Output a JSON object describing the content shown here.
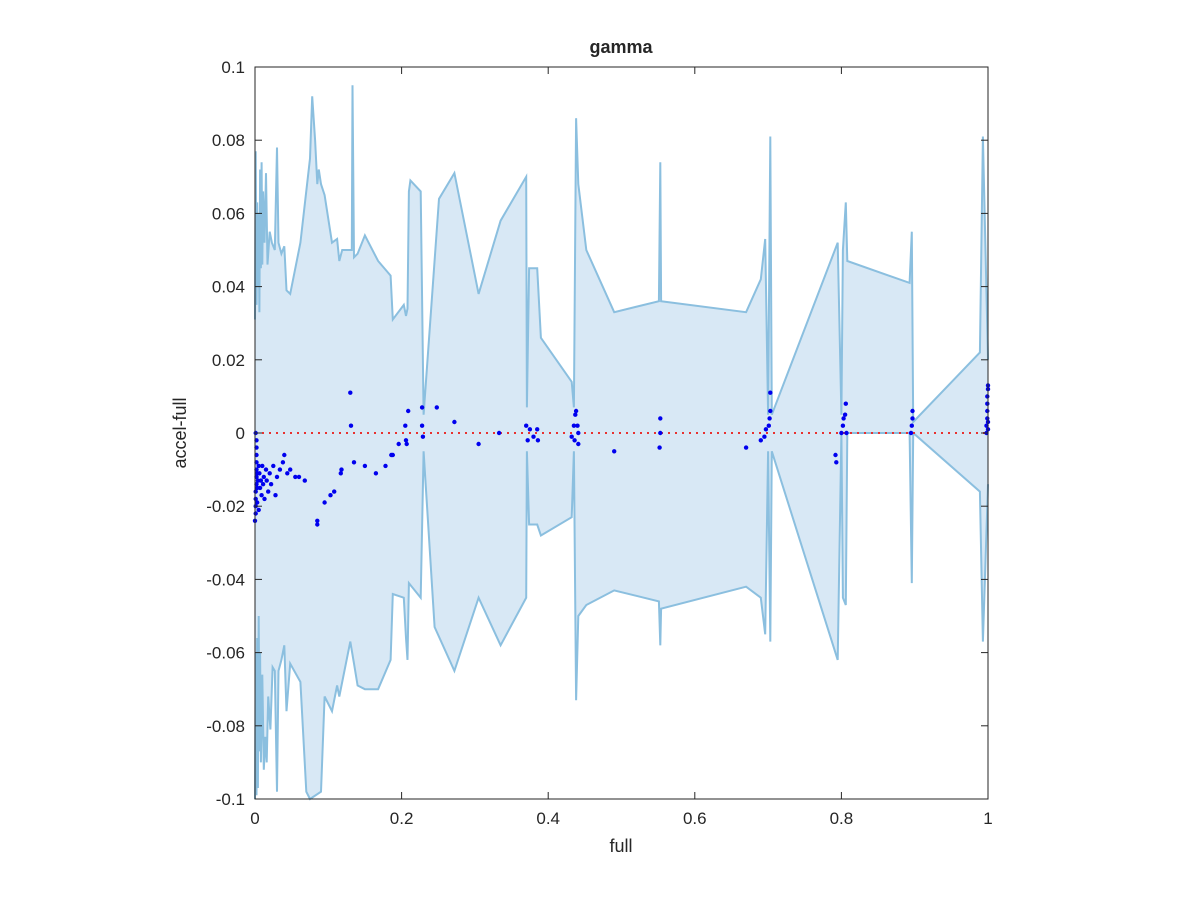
{
  "chart_data": {
    "type": "scatter",
    "title": "gamma",
    "xlabel": "full",
    "ylabel": "accel-full",
    "xlim": [
      0,
      1
    ],
    "ylim": [
      -0.1,
      0.1
    ],
    "xticks": [
      0,
      0.2,
      0.4,
      0.6,
      0.8,
      1
    ],
    "xtick_labels": [
      "0",
      "0.2",
      "0.4",
      "0.6",
      "0.8",
      "1"
    ],
    "yticks": [
      -0.1,
      -0.08,
      -0.06,
      -0.04,
      -0.02,
      0,
      0.02,
      0.04,
      0.06,
      0.08,
      0.1
    ],
    "ytick_labels": [
      "-0.1",
      "-0.08",
      "-0.06",
      "-0.04",
      "-0.02",
      "0",
      "0.02",
      "0.04",
      "0.06",
      "0.08",
      "0.1"
    ],
    "grid": false,
    "box": true,
    "colors": {
      "band_fill": "#d8e8f5",
      "band_edge": "#8bbfdf",
      "points": "#0000ee",
      "zero_line": "#e8312f",
      "axes": "#262626"
    },
    "zero_line": {
      "y": 0,
      "style": "dotted"
    },
    "band_upper": [
      [
        0.0,
        0.031
      ],
      [
        0.001,
        0.077
      ],
      [
        0.002,
        0.035
      ],
      [
        0.003,
        0.063
      ],
      [
        0.004,
        0.04
      ],
      [
        0.005,
        0.06
      ],
      [
        0.006,
        0.033
      ],
      [
        0.007,
        0.072
      ],
      [
        0.008,
        0.045
      ],
      [
        0.009,
        0.074
      ],
      [
        0.01,
        0.046
      ],
      [
        0.011,
        0.066
      ],
      [
        0.013,
        0.052
      ],
      [
        0.015,
        0.071
      ],
      [
        0.017,
        0.046
      ],
      [
        0.02,
        0.055
      ],
      [
        0.023,
        0.052
      ],
      [
        0.027,
        0.05
      ],
      [
        0.03,
        0.078
      ],
      [
        0.032,
        0.052
      ],
      [
        0.036,
        0.049
      ],
      [
        0.04,
        0.051
      ],
      [
        0.043,
        0.039
      ],
      [
        0.048,
        0.038
      ],
      [
        0.062,
        0.052
      ],
      [
        0.075,
        0.075
      ],
      [
        0.078,
        0.092
      ],
      [
        0.082,
        0.08
      ],
      [
        0.085,
        0.068
      ],
      [
        0.087,
        0.072
      ],
      [
        0.09,
        0.068
      ],
      [
        0.095,
        0.065
      ],
      [
        0.105,
        0.052
      ],
      [
        0.112,
        0.053
      ],
      [
        0.115,
        0.047
      ],
      [
        0.119,
        0.05
      ],
      [
        0.132,
        0.05
      ],
      [
        0.133,
        0.095
      ],
      [
        0.135,
        0.048
      ],
      [
        0.14,
        0.049
      ],
      [
        0.15,
        0.054
      ],
      [
        0.168,
        0.047
      ],
      [
        0.185,
        0.043
      ],
      [
        0.188,
        0.031
      ],
      [
        0.203,
        0.035
      ],
      [
        0.206,
        0.032
      ],
      [
        0.208,
        0.034
      ],
      [
        0.21,
        0.066
      ],
      [
        0.212,
        0.069
      ],
      [
        0.226,
        0.066
      ],
      [
        0.23,
        0.005
      ],
      [
        0.251,
        0.064
      ],
      [
        0.272,
        0.071
      ],
      [
        0.305,
        0.038
      ],
      [
        0.335,
        0.058
      ],
      [
        0.37,
        0.07
      ],
      [
        0.371,
        0.007
      ],
      [
        0.374,
        0.045
      ],
      [
        0.385,
        0.045
      ],
      [
        0.39,
        0.026
      ],
      [
        0.432,
        0.014
      ],
      [
        0.435,
        0.007
      ],
      [
        0.438,
        0.086
      ],
      [
        0.441,
        0.068
      ],
      [
        0.452,
        0.05
      ],
      [
        0.49,
        0.033
      ],
      [
        0.551,
        0.036
      ],
      [
        0.553,
        0.074
      ],
      [
        0.554,
        0.036
      ],
      [
        0.67,
        0.033
      ],
      [
        0.69,
        0.042
      ],
      [
        0.696,
        0.053
      ],
      [
        0.7,
        0.005
      ],
      [
        0.703,
        0.081
      ],
      [
        0.705,
        0.005
      ],
      [
        0.795,
        0.052
      ],
      [
        0.8,
        0.005
      ],
      [
        0.802,
        0.05
      ],
      [
        0.806,
        0.063
      ],
      [
        0.808,
        0.047
      ],
      [
        0.893,
        0.041
      ],
      [
        0.896,
        0.055
      ],
      [
        0.898,
        0.003
      ],
      [
        0.989,
        0.022
      ],
      [
        0.993,
        0.081
      ],
      [
        1.0,
        0.02
      ]
    ],
    "band_lower": [
      [
        0.0,
        -0.1
      ],
      [
        0.001,
        -0.06
      ],
      [
        0.002,
        -0.099
      ],
      [
        0.003,
        -0.056
      ],
      [
        0.004,
        -0.097
      ],
      [
        0.005,
        -0.05
      ],
      [
        0.006,
        -0.087
      ],
      [
        0.007,
        -0.06
      ],
      [
        0.008,
        -0.09
      ],
      [
        0.01,
        -0.066
      ],
      [
        0.012,
        -0.092
      ],
      [
        0.014,
        -0.083
      ],
      [
        0.016,
        -0.09
      ],
      [
        0.018,
        -0.072
      ],
      [
        0.021,
        -0.081
      ],
      [
        0.024,
        -0.064
      ],
      [
        0.027,
        -0.065
      ],
      [
        0.03,
        -0.098
      ],
      [
        0.032,
        -0.065
      ],
      [
        0.036,
        -0.062
      ],
      [
        0.04,
        -0.058
      ],
      [
        0.043,
        -0.076
      ],
      [
        0.048,
        -0.063
      ],
      [
        0.062,
        -0.068
      ],
      [
        0.07,
        -0.098
      ],
      [
        0.075,
        -0.1
      ],
      [
        0.09,
        -0.098
      ],
      [
        0.095,
        -0.072
      ],
      [
        0.105,
        -0.076
      ],
      [
        0.112,
        -0.069
      ],
      [
        0.115,
        -0.072
      ],
      [
        0.13,
        -0.057
      ],
      [
        0.135,
        -0.063
      ],
      [
        0.14,
        -0.069
      ],
      [
        0.15,
        -0.07
      ],
      [
        0.168,
        -0.07
      ],
      [
        0.185,
        -0.062
      ],
      [
        0.188,
        -0.044
      ],
      [
        0.203,
        -0.045
      ],
      [
        0.206,
        -0.056
      ],
      [
        0.208,
        -0.062
      ],
      [
        0.21,
        -0.041
      ],
      [
        0.226,
        -0.045
      ],
      [
        0.23,
        -0.005
      ],
      [
        0.245,
        -0.053
      ],
      [
        0.272,
        -0.065
      ],
      [
        0.305,
        -0.045
      ],
      [
        0.335,
        -0.058
      ],
      [
        0.37,
        -0.045
      ],
      [
        0.371,
        -0.005
      ],
      [
        0.374,
        -0.025
      ],
      [
        0.385,
        -0.025
      ],
      [
        0.39,
        -0.028
      ],
      [
        0.432,
        -0.023
      ],
      [
        0.435,
        -0.005
      ],
      [
        0.438,
        -0.073
      ],
      [
        0.441,
        -0.05
      ],
      [
        0.452,
        -0.047
      ],
      [
        0.49,
        -0.043
      ],
      [
        0.551,
        -0.046
      ],
      [
        0.553,
        -0.058
      ],
      [
        0.554,
        -0.048
      ],
      [
        0.67,
        -0.042
      ],
      [
        0.69,
        -0.045
      ],
      [
        0.696,
        -0.055
      ],
      [
        0.7,
        -0.005
      ],
      [
        0.703,
        -0.057
      ],
      [
        0.705,
        -0.005
      ],
      [
        0.795,
        -0.062
      ],
      [
        0.8,
        0.0
      ],
      [
        0.802,
        -0.045
      ],
      [
        0.806,
        -0.047
      ],
      [
        0.808,
        0.0
      ],
      [
        0.893,
        0.0
      ],
      [
        0.896,
        -0.041
      ],
      [
        0.898,
        0.0
      ],
      [
        0.989,
        -0.016
      ],
      [
        0.993,
        -0.057
      ],
      [
        1.0,
        -0.014
      ]
    ],
    "points": [
      [
        0.0,
        -0.024
      ],
      [
        0.001,
        -0.022
      ],
      [
        0.001,
        -0.02
      ],
      [
        0.001,
        -0.018
      ],
      [
        0.001,
        -0.016
      ],
      [
        0.002,
        -0.014
      ],
      [
        0.002,
        -0.012
      ],
      [
        0.002,
        -0.01
      ],
      [
        0.002,
        -0.008
      ],
      [
        0.002,
        -0.006
      ],
      [
        0.002,
        -0.004
      ],
      [
        0.002,
        -0.002
      ],
      [
        0.001,
        0.0
      ],
      [
        0.003,
        -0.019
      ],
      [
        0.003,
        -0.015
      ],
      [
        0.003,
        -0.011
      ],
      [
        0.004,
        -0.013
      ],
      [
        0.005,
        -0.009
      ],
      [
        0.005,
        -0.021
      ],
      [
        0.006,
        -0.011
      ],
      [
        0.007,
        -0.015
      ],
      [
        0.008,
        -0.013
      ],
      [
        0.009,
        -0.017
      ],
      [
        0.01,
        -0.009
      ],
      [
        0.011,
        -0.014
      ],
      [
        0.012,
        -0.012
      ],
      [
        0.013,
        -0.018
      ],
      [
        0.015,
        -0.01
      ],
      [
        0.016,
        -0.013
      ],
      [
        0.018,
        -0.016
      ],
      [
        0.02,
        -0.011
      ],
      [
        0.022,
        -0.014
      ],
      [
        0.025,
        -0.009
      ],
      [
        0.028,
        -0.017
      ],
      [
        0.03,
        -0.012
      ],
      [
        0.034,
        -0.01
      ],
      [
        0.038,
        -0.008
      ],
      [
        0.04,
        -0.006
      ],
      [
        0.044,
        -0.011
      ],
      [
        0.048,
        -0.01
      ],
      [
        0.055,
        -0.012
      ],
      [
        0.06,
        -0.012
      ],
      [
        0.068,
        -0.013
      ],
      [
        0.085,
        -0.024
      ],
      [
        0.085,
        -0.025
      ],
      [
        0.095,
        -0.019
      ],
      [
        0.103,
        -0.017
      ],
      [
        0.108,
        -0.016
      ],
      [
        0.117,
        -0.011
      ],
      [
        0.118,
        -0.01
      ],
      [
        0.13,
        0.011
      ],
      [
        0.131,
        0.002
      ],
      [
        0.135,
        -0.008
      ],
      [
        0.15,
        -0.009
      ],
      [
        0.165,
        -0.011
      ],
      [
        0.178,
        -0.009
      ],
      [
        0.186,
        -0.006
      ],
      [
        0.188,
        -0.006
      ],
      [
        0.196,
        -0.003
      ],
      [
        0.205,
        0.002
      ],
      [
        0.206,
        -0.002
      ],
      [
        0.207,
        -0.003
      ],
      [
        0.209,
        0.006
      ],
      [
        0.228,
        0.007
      ],
      [
        0.228,
        0.002
      ],
      [
        0.229,
        -0.001
      ],
      [
        0.248,
        0.007
      ],
      [
        0.272,
        0.003
      ],
      [
        0.305,
        -0.003
      ],
      [
        0.333,
        0.0
      ],
      [
        0.37,
        0.002
      ],
      [
        0.372,
        -0.002
      ],
      [
        0.375,
        0.001
      ],
      [
        0.38,
        -0.001
      ],
      [
        0.385,
        0.001
      ],
      [
        0.386,
        -0.002
      ],
      [
        0.432,
        -0.001
      ],
      [
        0.435,
        0.002
      ],
      [
        0.436,
        -0.002
      ],
      [
        0.437,
        0.005
      ],
      [
        0.438,
        0.006
      ],
      [
        0.44,
        0.002
      ],
      [
        0.441,
        0.0
      ],
      [
        0.441,
        -0.003
      ],
      [
        0.49,
        -0.005
      ],
      [
        0.552,
        -0.004
      ],
      [
        0.553,
        0.0
      ],
      [
        0.553,
        0.004
      ],
      [
        0.67,
        -0.004
      ],
      [
        0.69,
        -0.002
      ],
      [
        0.695,
        -0.001
      ],
      [
        0.697,
        0.001
      ],
      [
        0.701,
        0.002
      ],
      [
        0.702,
        0.004
      ],
      [
        0.703,
        0.006
      ],
      [
        0.703,
        0.011
      ],
      [
        0.792,
        -0.006
      ],
      [
        0.793,
        -0.008
      ],
      [
        0.8,
        0.0
      ],
      [
        0.802,
        0.002
      ],
      [
        0.803,
        0.004
      ],
      [
        0.805,
        0.005
      ],
      [
        0.806,
        0.008
      ],
      [
        0.807,
        0.0
      ],
      [
        0.895,
        0.0
      ],
      [
        0.896,
        0.002
      ],
      [
        0.897,
        0.004
      ],
      [
        0.897,
        0.006
      ],
      [
        0.998,
        0.0
      ],
      [
        0.998,
        0.002
      ],
      [
        0.999,
        0.004
      ],
      [
        0.999,
        0.006
      ],
      [
        0.999,
        0.008
      ],
      [
        0.999,
        0.01
      ],
      [
        1.0,
        0.012
      ],
      [
        1.0,
        0.013
      ],
      [
        1.0,
        0.001
      ],
      [
        1.0,
        0.003
      ]
    ]
  }
}
